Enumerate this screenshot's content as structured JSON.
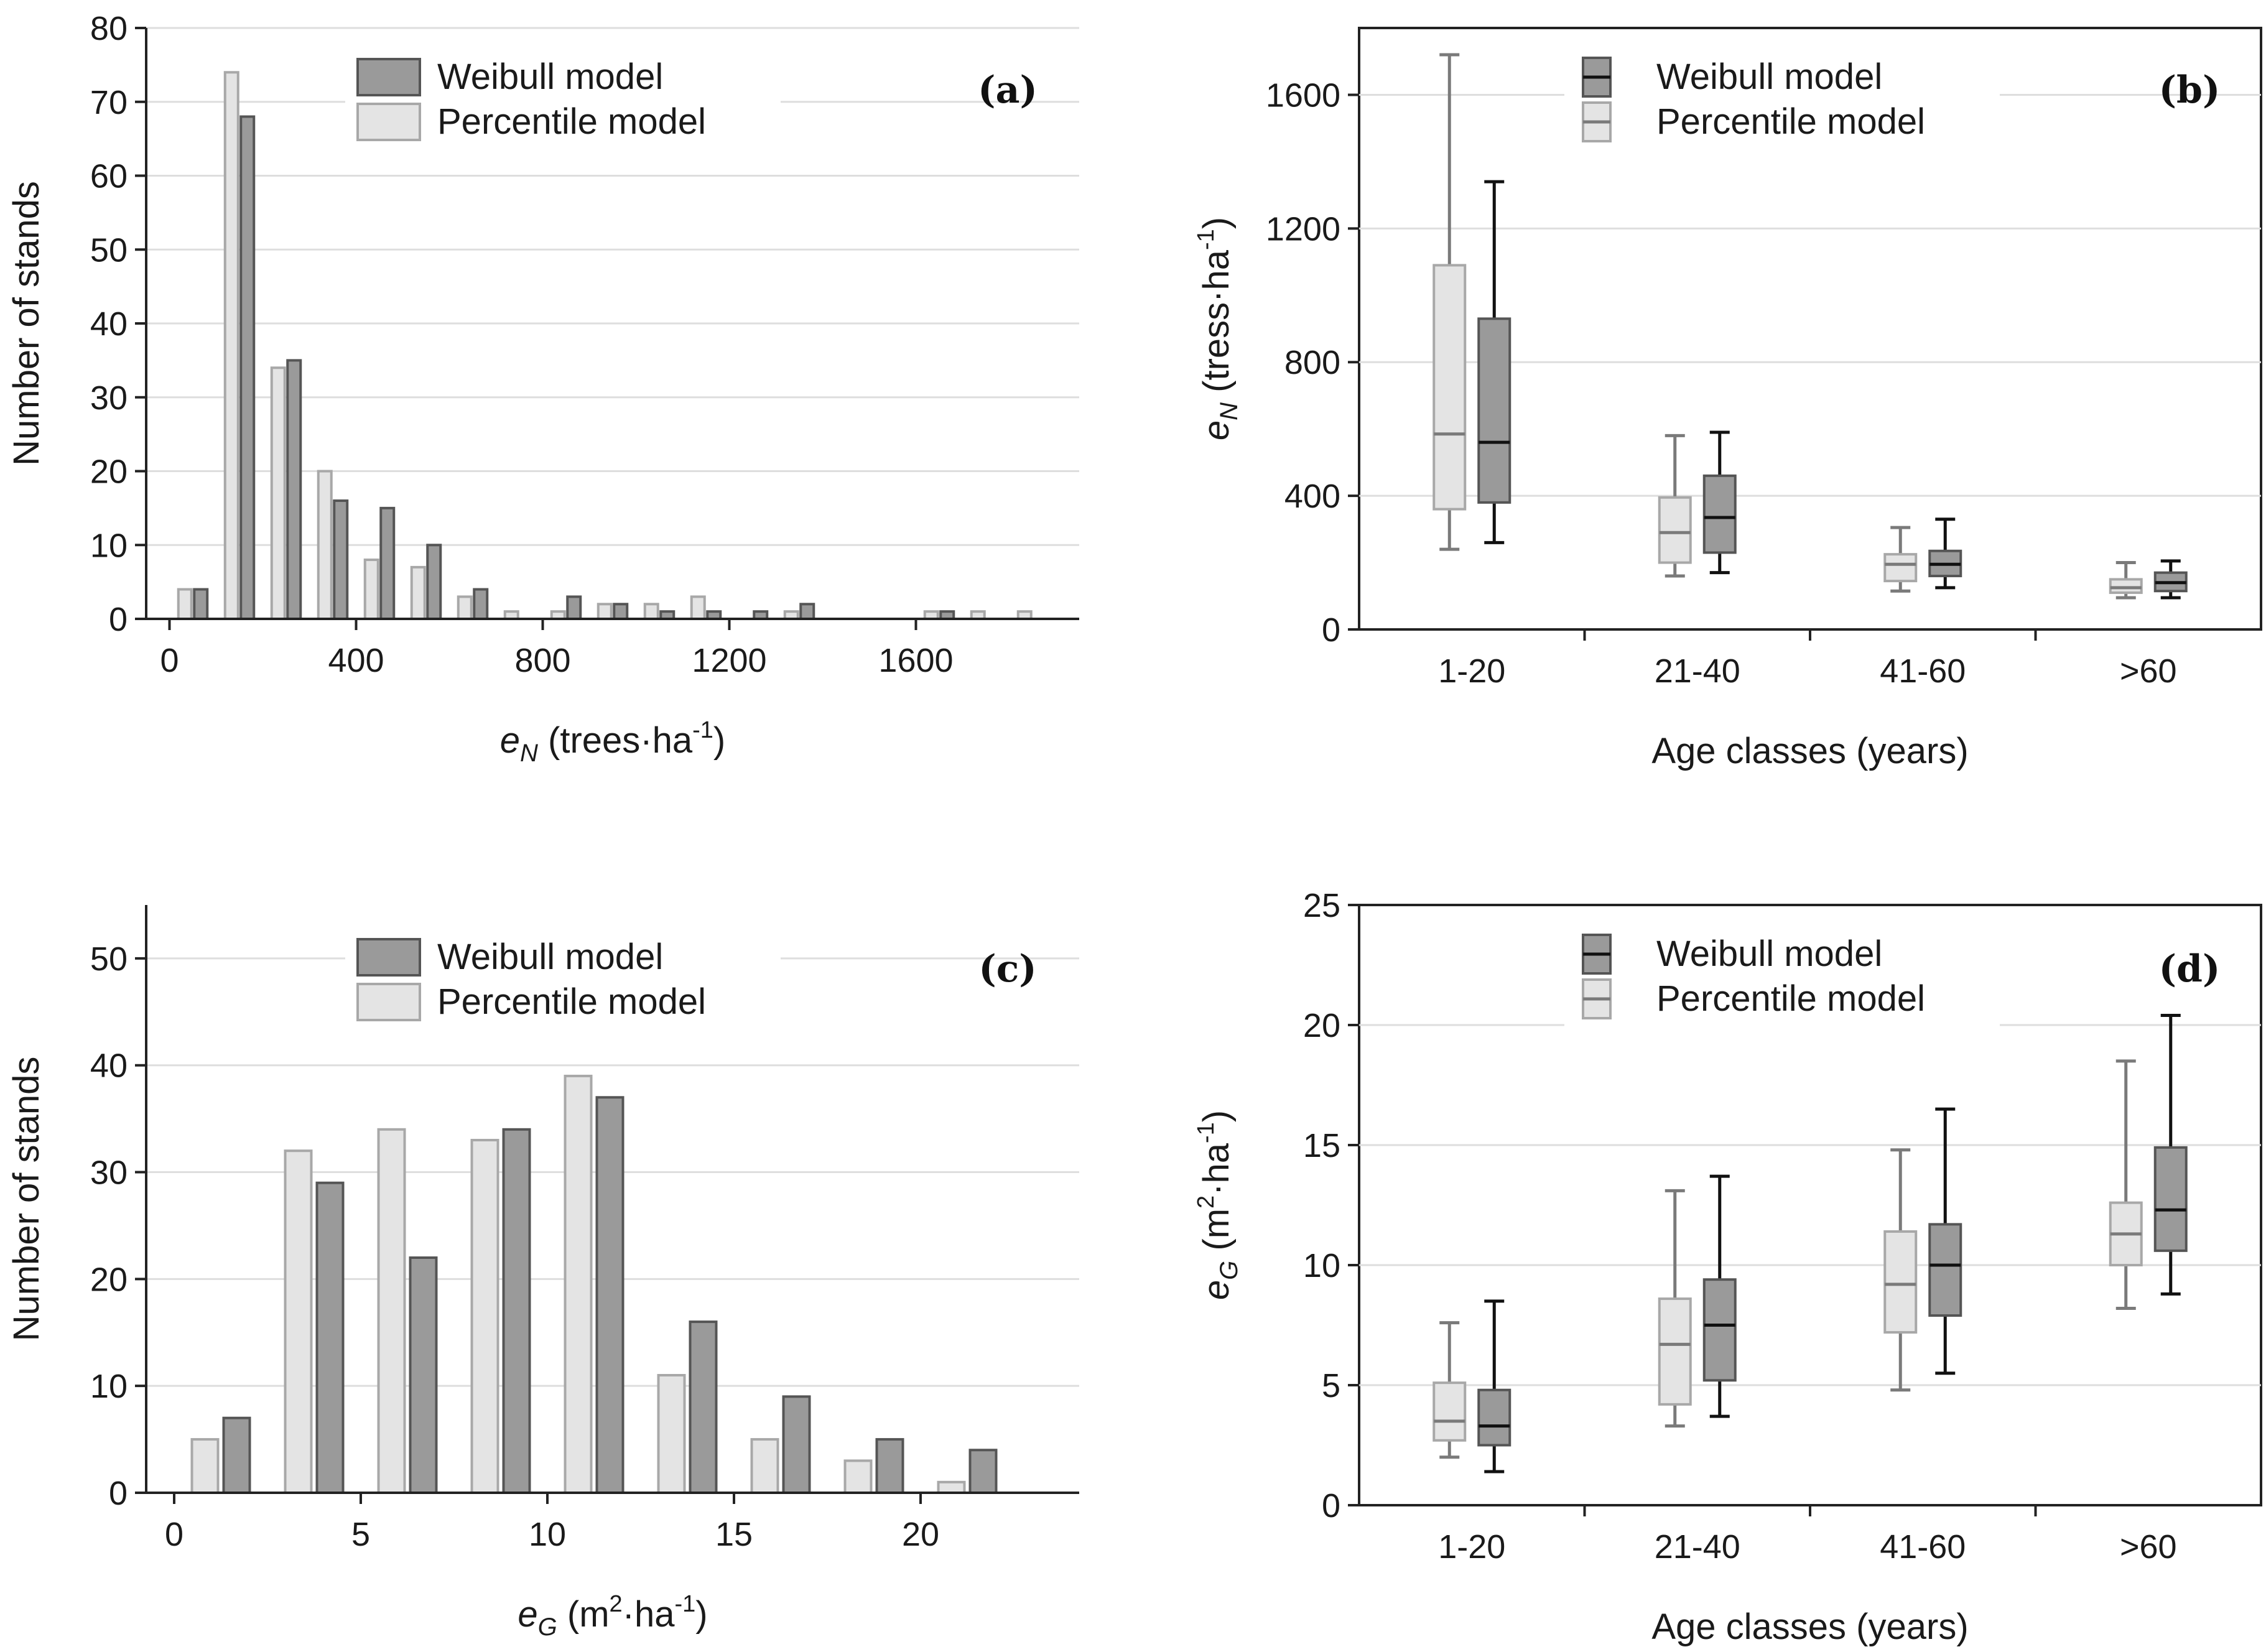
{
  "colors": {
    "weibull_fill": "#9a9a9a",
    "weibull_stroke": "#555555",
    "percentile_fill": "#e4e4e4",
    "percentile_stroke": "#a8a8a8",
    "weibull_whisker": "#111111",
    "percentile_whisker": "#7a7a7a",
    "gridline": "#dedede",
    "axis": "#222222"
  },
  "chart_data": [
    {
      "panel": "(a)",
      "type": "bar",
      "xlabel_main": "e",
      "xlabel_sub": "N",
      "xlabel_unit": "(trees·ha",
      "xlabel_exp": "-1",
      "xlabel_close": ")",
      "ylabel": "Number of stands",
      "xlim": [
        -50,
        1950
      ],
      "ylim": [
        0,
        80
      ],
      "yticks": [
        0,
        10,
        20,
        30,
        40,
        50,
        60,
        70,
        80
      ],
      "xticks": [
        0,
        400,
        800,
        1200,
        1600
      ],
      "legend_position": "top-center",
      "categories": [
        50,
        150,
        250,
        350,
        450,
        550,
        650,
        750,
        850,
        950,
        1050,
        1150,
        1250,
        1350,
        1450,
        1550,
        1650,
        1750,
        1850
      ],
      "series": [
        {
          "name": "Weibull model",
          "values": [
            4,
            68,
            35,
            16,
            15,
            10,
            4,
            0,
            3,
            2,
            1,
            1,
            1,
            2,
            0,
            0,
            1,
            0,
            0
          ]
        },
        {
          "name": "Percentile model",
          "values": [
            4,
            74,
            34,
            20,
            8,
            7,
            3,
            1,
            1,
            2,
            2,
            3,
            0,
            1,
            0,
            0,
            1,
            1,
            1
          ]
        }
      ]
    },
    {
      "panel": "(b)",
      "type": "boxplot",
      "ylabel_main": "e",
      "ylabel_sub": "N",
      "ylabel_unit": "(tress·ha",
      "ylabel_exp": "-1",
      "ylabel_close": ")",
      "xlabel": "Age classes (years)",
      "ylim": [
        0,
        1800
      ],
      "yticks": [
        0,
        400,
        800,
        1200,
        1600
      ],
      "legend_position": "top-center",
      "categories": [
        "1-20",
        "21-40",
        "41-60",
        ">60"
      ],
      "series": [
        {
          "name": "Weibull model",
          "boxes": [
            {
              "min": 260,
              "q1": 380,
              "median": 560,
              "q3": 930,
              "max": 1340
            },
            {
              "min": 170,
              "q1": 230,
              "median": 335,
              "q3": 460,
              "max": 590
            },
            {
              "min": 125,
              "q1": 160,
              "median": 195,
              "q3": 235,
              "max": 330
            },
            {
              "min": 95,
              "q1": 115,
              "median": 140,
              "q3": 170,
              "max": 205
            }
          ]
        },
        {
          "name": "Percentile model",
          "boxes": [
            {
              "min": 240,
              "q1": 360,
              "median": 585,
              "q3": 1090,
              "max": 1720
            },
            {
              "min": 160,
              "q1": 200,
              "median": 290,
              "q3": 395,
              "max": 580
            },
            {
              "min": 115,
              "q1": 145,
              "median": 195,
              "q3": 225,
              "max": 305
            },
            {
              "min": 95,
              "q1": 110,
              "median": 125,
              "q3": 150,
              "max": 200
            }
          ]
        }
      ]
    },
    {
      "panel": "(c)",
      "type": "bar",
      "xlabel_main": "e",
      "xlabel_sub": "G",
      "xlabel_unit": "(m",
      "xlabel_exp": "2",
      "xlabel_tail": "·ha",
      "xlabel_exp2": "-1",
      "xlabel_close": ")",
      "ylabel": "Number of stands",
      "xlim": [
        -0.75,
        24.25
      ],
      "ylim": [
        0,
        55
      ],
      "yticks": [
        0,
        10,
        20,
        30,
        40,
        50
      ],
      "xticks": [
        0,
        5,
        10,
        15,
        20
      ],
      "legend_position": "top-center",
      "categories": [
        1.25,
        3.75,
        6.25,
        8.75,
        11.25,
        13.75,
        16.25,
        18.75,
        21.25
      ],
      "series": [
        {
          "name": "Weibull model",
          "values": [
            7,
            29,
            22,
            34,
            37,
            16,
            9,
            5,
            4
          ]
        },
        {
          "name": "Percentile model",
          "values": [
            5,
            32,
            34,
            33,
            39,
            11,
            5,
            3,
            1
          ]
        }
      ]
    },
    {
      "panel": "(d)",
      "type": "boxplot",
      "ylabel_main": "e",
      "ylabel_sub": "G",
      "ylabel_unit": "(m",
      "ylabel_exp": "2",
      "ylabel_tail": "·ha",
      "ylabel_exp2": "-1",
      "ylabel_close": ")",
      "xlabel": "Age classes (years)",
      "ylim": [
        0,
        25
      ],
      "yticks": [
        0,
        5,
        10,
        15,
        20,
        25
      ],
      "legend_position": "top-center",
      "categories": [
        "1-20",
        "21-40",
        "41-60",
        ">60"
      ],
      "series": [
        {
          "name": "Weibull model",
          "boxes": [
            {
              "min": 1.4,
              "q1": 2.5,
              "median": 3.3,
              "q3": 4.8,
              "max": 8.5
            },
            {
              "min": 3.7,
              "q1": 5.2,
              "median": 7.5,
              "q3": 9.4,
              "max": 13.7
            },
            {
              "min": 5.5,
              "q1": 7.9,
              "median": 10.0,
              "q3": 11.7,
              "max": 16.5
            },
            {
              "min": 8.8,
              "q1": 10.6,
              "median": 12.3,
              "q3": 14.9,
              "max": 20.4
            }
          ]
        },
        {
          "name": "Percentile model",
          "boxes": [
            {
              "min": 2.0,
              "q1": 2.7,
              "median": 3.5,
              "q3": 5.1,
              "max": 7.6
            },
            {
              "min": 3.3,
              "q1": 4.2,
              "median": 6.7,
              "q3": 8.6,
              "max": 13.1
            },
            {
              "min": 4.8,
              "q1": 7.2,
              "median": 9.2,
              "q3": 11.4,
              "max": 14.8
            },
            {
              "min": 8.2,
              "q1": 10.0,
              "median": 11.3,
              "q3": 12.6,
              "max": 18.5
            }
          ]
        }
      ]
    }
  ]
}
